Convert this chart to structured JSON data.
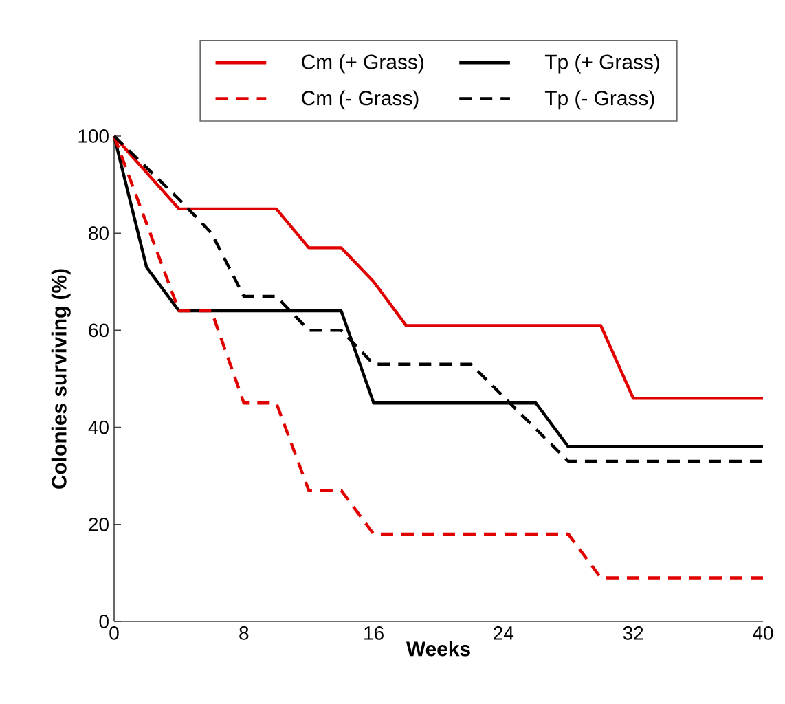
{
  "chart_data": {
    "type": "line",
    "xlabel": "Weeks",
    "ylabel": "Colonies surviving (%)",
    "xlim": [
      0,
      40
    ],
    "xticks": [
      0,
      8,
      16,
      24,
      32,
      40
    ],
    "ylim": [
      0,
      100
    ],
    "yticks": [
      0,
      20,
      40,
      60,
      80,
      100
    ],
    "legend": "top",
    "grid": false,
    "marker": "none",
    "series": [
      {
        "name": "Cm (+ Grass)",
        "color": "#e00000",
        "line_style": "solid",
        "x": [
          0,
          4,
          10,
          12,
          14,
          16,
          18,
          30,
          32,
          40
        ],
        "values": [
          100,
          85,
          85,
          77,
          77,
          70,
          61,
          61,
          46,
          46
        ]
      },
      {
        "name": "Tp (+ Grass)",
        "color": "#000000",
        "line_style": "solid",
        "x": [
          0,
          2,
          4,
          14,
          16,
          26,
          28,
          40
        ],
        "values": [
          100,
          73,
          64,
          64,
          45,
          45,
          36,
          36
        ]
      },
      {
        "name": "Cm (- Grass)",
        "color": "#e00000",
        "line_style": "dashed",
        "x": [
          0,
          4,
          6,
          8,
          10,
          12,
          14,
          16,
          28,
          30,
          40
        ],
        "values": [
          100,
          64,
          64,
          45,
          45,
          27,
          27,
          18,
          18,
          9,
          9
        ]
      },
      {
        "name": "Tp (- Grass)",
        "color": "#000000",
        "line_style": "dashed",
        "x": [
          0,
          4,
          6,
          8,
          10,
          12,
          14,
          16,
          22,
          28,
          40
        ],
        "values": [
          100,
          87,
          80,
          67,
          67,
          60,
          60,
          53,
          53,
          33,
          33
        ]
      }
    ]
  }
}
